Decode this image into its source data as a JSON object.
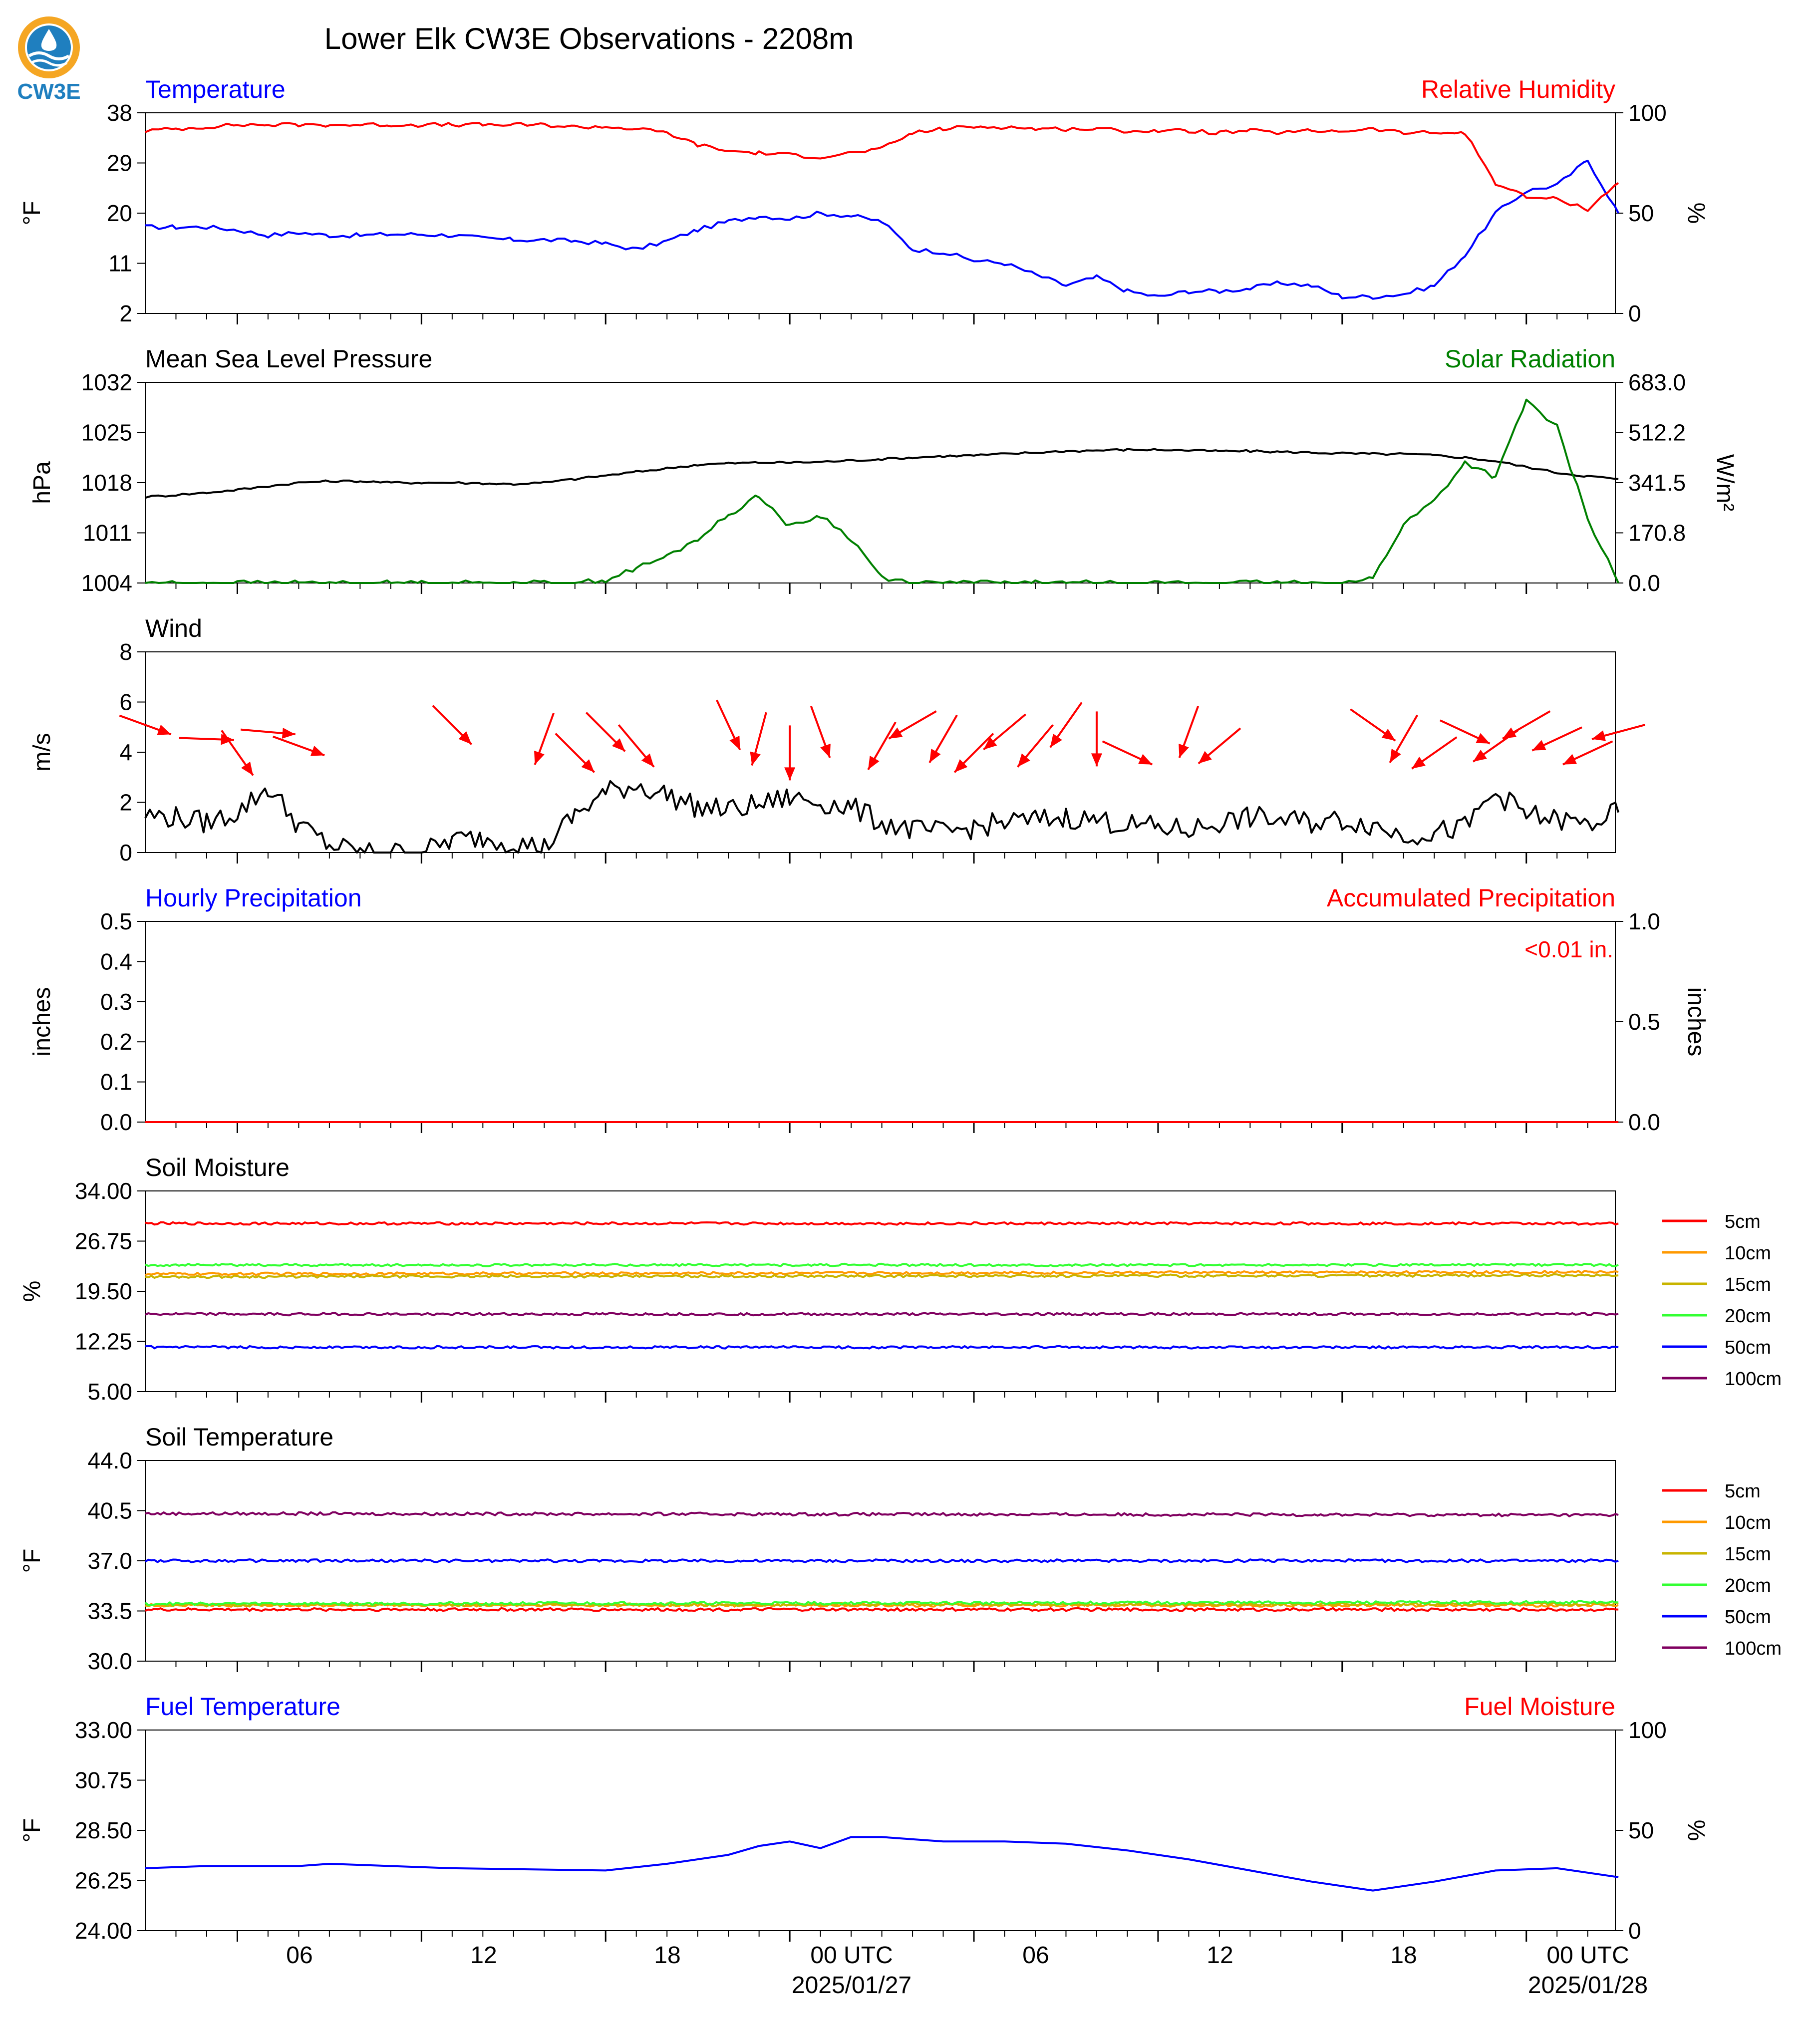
{
  "page": {
    "title": "Lower Elk CW3E Observations - 2208m",
    "logo_text": "CW3E",
    "x_ticks": [
      "06",
      "12",
      "18",
      "00 UTC",
      "06",
      "12",
      "18",
      "00 UTC"
    ],
    "x_dates": [
      "2025/01/27",
      "2025/01/28"
    ]
  },
  "colors": {
    "red": "#ff0000",
    "blue": "#0000ff",
    "green": "#008000",
    "black": "#000000",
    "orange": "#ff9900",
    "olive": "#c8b400",
    "lime": "#33ff33",
    "purple": "#800060",
    "logo_orange": "#f5a623",
    "logo_blue": "#1f7fbf"
  },
  "chart_data": [
    {
      "type": "line",
      "title_left": "Temperature",
      "title_right": "Relative Humidity",
      "ylabel_left": "°F",
      "ylabel_right": "%",
      "ylim_left": [
        2,
        38
      ],
      "yticks_left": [
        "38",
        "29",
        "20",
        "11",
        "2"
      ],
      "ylim_right": [
        0,
        100
      ],
      "yticks_right": [
        "100",
        "50",
        "0"
      ],
      "x_hours": [
        0,
        1,
        2,
        3,
        4,
        5,
        6,
        7,
        8,
        9,
        10,
        11,
        12,
        13,
        14,
        15,
        16,
        17,
        18,
        19,
        20,
        21,
        22,
        23,
        24,
        25,
        26,
        27,
        28,
        29,
        30,
        31,
        32,
        33,
        34,
        35,
        36,
        37,
        38,
        39,
        40,
        41,
        42,
        43,
        44,
        45,
        46,
        47,
        48
      ],
      "series": [
        {
          "name": "Temperature",
          "axis": "left",
          "values": [
            17.5,
            17.5,
            17.5,
            17.0,
            16.0,
            16.5,
            16.0,
            16.0,
            16.2,
            16.2,
            16.0,
            15.5,
            15.2,
            15.2,
            15.0,
            14.5,
            13.5,
            15.0,
            17.0,
            18.5,
            19.5,
            19.0,
            20.0,
            19.5,
            18.5,
            13.5,
            13.0,
            11.5,
            11.0,
            9.0,
            7.0,
            8.5,
            6.0,
            5.0,
            6.0,
            6.0,
            6.5,
            7.5,
            7.0,
            5.0,
            5.0,
            5.5,
            7.0,
            12.5,
            20.0,
            24.0,
            25.0,
            29.5,
            20.0
          ]
        },
        {
          "name": "Relative Humidity",
          "axis": "right",
          "values": [
            91,
            92,
            93,
            94,
            94,
            94,
            94,
            94,
            94,
            94,
            94,
            94,
            94,
            94,
            93,
            93,
            92,
            90,
            84,
            81,
            80,
            79,
            78,
            80,
            82,
            90,
            92,
            93,
            93,
            92,
            92,
            92,
            91,
            91,
            91,
            90,
            91,
            90,
            91,
            91,
            92,
            90,
            90,
            90,
            65,
            58,
            57,
            52,
            65
          ]
        }
      ]
    },
    {
      "type": "line",
      "title_left": "Mean Sea Level Pressure",
      "title_right": "Solar Radiation",
      "ylabel_left": "hPa",
      "ylabel_right": "W/m²",
      "ylim_left": [
        1004,
        1032
      ],
      "yticks_left": [
        "1032",
        "1025",
        "1018",
        "1011",
        "1004"
      ],
      "ylim_right": [
        0,
        683
      ],
      "yticks_right": [
        "683.0",
        "512.2",
        "341.5",
        "170.8",
        "0.0"
      ],
      "x_hours": [
        0,
        1,
        2,
        3,
        4,
        5,
        6,
        7,
        8,
        9,
        10,
        11,
        12,
        13,
        14,
        15,
        16,
        17,
        18,
        19,
        20,
        21,
        22,
        23,
        24,
        25,
        26,
        27,
        28,
        29,
        30,
        31,
        32,
        33,
        34,
        35,
        36,
        37,
        38,
        39,
        40,
        41,
        42,
        43,
        44,
        45,
        46,
        47,
        48
      ],
      "series": [
        {
          "name": "Mean Sea Level Pressure",
          "axis": "left",
          "values": [
            1016.0,
            1016.3,
            1016.6,
            1017.0,
            1017.5,
            1018.0,
            1018.2,
            1018.2,
            1018.0,
            1018.0,
            1018.0,
            1017.9,
            1017.8,
            1018.0,
            1018.5,
            1019.0,
            1019.5,
            1020.0,
            1020.5,
            1020.7,
            1020.8,
            1020.8,
            1020.9,
            1021.1,
            1021.3,
            1021.5,
            1021.7,
            1021.8,
            1022.0,
            1022.2,
            1022.4,
            1022.5,
            1022.6,
            1022.6,
            1022.5,
            1022.4,
            1022.4,
            1022.3,
            1022.2,
            1022.1,
            1022.0,
            1022.0,
            1021.8,
            1021.5,
            1021.0,
            1020.2,
            1019.4,
            1018.9,
            1018.5
          ]
        },
        {
          "name": "Solar Radiation",
          "axis": "right",
          "values": [
            0,
            0,
            0,
            0,
            0,
            0,
            0,
            0,
            0,
            0,
            0,
            0,
            0,
            0,
            0,
            10,
            50,
            90,
            150,
            230,
            300,
            190,
            230,
            150,
            20,
            0,
            0,
            0,
            0,
            0,
            0,
            0,
            0,
            0,
            0,
            0,
            0,
            0,
            0,
            0,
            15,
            200,
            280,
            410,
            360,
            620,
            530,
            220,
            0
          ]
        }
      ]
    },
    {
      "type": "line",
      "title_left": "Wind",
      "ylabel_left": "m/s",
      "ylim_left": [
        0,
        8
      ],
      "yticks_left": [
        "8",
        "6",
        "4",
        "2",
        "0"
      ],
      "x_hours": [
        0,
        1,
        2,
        3,
        4,
        5,
        6,
        7,
        8,
        9,
        10,
        11,
        12,
        13,
        14,
        15,
        16,
        17,
        18,
        19,
        20,
        21,
        22,
        23,
        24,
        25,
        26,
        27,
        28,
        29,
        30,
        31,
        32,
        33,
        34,
        35,
        36,
        37,
        38,
        39,
        40,
        41,
        42,
        43,
        44,
        45,
        46,
        47,
        48
      ],
      "series": [
        {
          "name": "Wind",
          "axis": "left",
          "values": [
            1.5,
            1.4,
            1.2,
            1.6,
            2.6,
            1.1,
            0.3,
            0,
            0,
            0,
            0.5,
            0.6,
            0.4,
            0.2,
            1.5,
            2.4,
            2.7,
            2.3,
            1.8,
            1.7,
            1.9,
            2.2,
            2.0,
            1.8,
            1.2,
            0.9,
            0.8,
            1.0,
            1.2,
            1.3,
            1.4,
            1.3,
            1.1,
            1.0,
            0.9,
            1.2,
            1.4,
            1.3,
            1.2,
            1.3,
            1.1,
            0.7,
            0.8,
            1.0,
            2.4,
            1.5,
            1.3,
            1.1,
            1.6
          ]
        }
      ],
      "barb_hours": [
        0,
        2,
        3,
        4,
        5,
        10,
        13,
        14,
        15,
        16,
        19,
        20,
        21,
        22,
        24,
        25,
        26,
        27,
        28,
        29,
        30,
        31,
        32,
        34,
        35,
        40,
        41,
        42,
        43,
        44,
        45,
        46,
        47,
        48
      ],
      "barb_directions_deg": [
        110,
        92,
        145,
        95,
        110,
        135,
        200,
        135,
        135,
        140,
        155,
        195,
        180,
        160,
        210,
        240,
        210,
        225,
        230,
        220,
        215,
        180,
        115,
        200,
        230,
        125,
        210,
        235,
        115,
        235,
        240,
        245,
        245,
        255
      ]
    },
    {
      "type": "line",
      "title_left": "Hourly Precipitation",
      "title_right": "Accumulated Precipitation",
      "annotation": "<0.01 in.",
      "ylabel_left": "inches",
      "ylabel_right": "inches",
      "ylim_left": [
        0,
        0.5
      ],
      "yticks_left": [
        "0.5",
        "0.4",
        "0.3",
        "0.2",
        "0.1",
        "0.0"
      ],
      "ylim_right": [
        0,
        1.0
      ],
      "yticks_right": [
        "1.0",
        "0.5",
        "0.0"
      ],
      "x_hours": [
        0,
        48
      ],
      "series": [
        {
          "name": "Hourly Precipitation",
          "axis": "left",
          "values": [
            0,
            0
          ]
        },
        {
          "name": "Accumulated Precipitation",
          "axis": "right",
          "values": [
            0,
            0
          ]
        }
      ]
    },
    {
      "type": "line",
      "title_left": "Soil Moisture",
      "ylabel_left": "%",
      "ylim_left": [
        5,
        34
      ],
      "yticks_left": [
        "34.00",
        "26.75",
        "19.50",
        "12.25",
        "5.00"
      ],
      "x_hours": [
        0,
        48
      ],
      "series": [
        {
          "name": "5cm",
          "axis": "left",
          "values": [
            29.3,
            29.3
          ]
        },
        {
          "name": "10cm",
          "axis": "left",
          "values": [
            22.0,
            22.3
          ]
        },
        {
          "name": "15cm",
          "axis": "left",
          "values": [
            21.6,
            21.8
          ]
        },
        {
          "name": "20cm",
          "axis": "left",
          "values": [
            23.3,
            23.3
          ]
        },
        {
          "name": "50cm",
          "axis": "left",
          "values": [
            11.4,
            11.4
          ]
        },
        {
          "name": "100cm",
          "axis": "left",
          "values": [
            16.2,
            16.2
          ]
        }
      ]
    },
    {
      "type": "line",
      "title_left": "Soil Temperature",
      "ylabel_left": "°F",
      "ylim_left": [
        30,
        44
      ],
      "yticks_left": [
        "44.0",
        "40.5",
        "37.0",
        "33.5",
        "30.0"
      ],
      "x_hours": [
        0,
        48
      ],
      "series": [
        {
          "name": "5cm",
          "axis": "left",
          "values": [
            33.6,
            33.6
          ]
        },
        {
          "name": "10cm",
          "axis": "left",
          "values": [
            33.9,
            33.9
          ]
        },
        {
          "name": "15cm",
          "axis": "left",
          "values": [
            33.9,
            34.0
          ]
        },
        {
          "name": "20cm",
          "axis": "left",
          "values": [
            34.0,
            34.1
          ]
        },
        {
          "name": "50cm",
          "axis": "left",
          "values": [
            37.0,
            37.0
          ]
        },
        {
          "name": "100cm",
          "axis": "left",
          "values": [
            40.3,
            40.2
          ]
        }
      ]
    },
    {
      "type": "line",
      "title_left": "Fuel Temperature",
      "title_right": "Fuel Moisture",
      "ylabel_left": "°F",
      "ylabel_right": "%",
      "ylim_left": [
        24,
        33
      ],
      "yticks_left": [
        "33.00",
        "30.75",
        "28.50",
        "26.25",
        "24.00"
      ],
      "ylim_right": [
        0,
        100
      ],
      "yticks_right": [
        "100",
        "50",
        "0"
      ],
      "x_hours": [
        0,
        2,
        4,
        5,
        6,
        10,
        15,
        17,
        19,
        20,
        21,
        22,
        23,
        24,
        26,
        28,
        30,
        32,
        34,
        36,
        38,
        40,
        42,
        44,
        46,
        47.5,
        48
      ],
      "series": [
        {
          "name": "Fuel Temperature",
          "axis": "left",
          "values": [
            26.8,
            26.9,
            26.9,
            26.9,
            27.0,
            26.8,
            26.7,
            27.0,
            27.4,
            27.8,
            28.0,
            27.7,
            28.2,
            28.2,
            28.0,
            28.0,
            27.9,
            27.6,
            27.2,
            26.7,
            26.2,
            25.8,
            26.2,
            26.7,
            26.8,
            26.5,
            26.4
          ]
        }
      ]
    }
  ]
}
